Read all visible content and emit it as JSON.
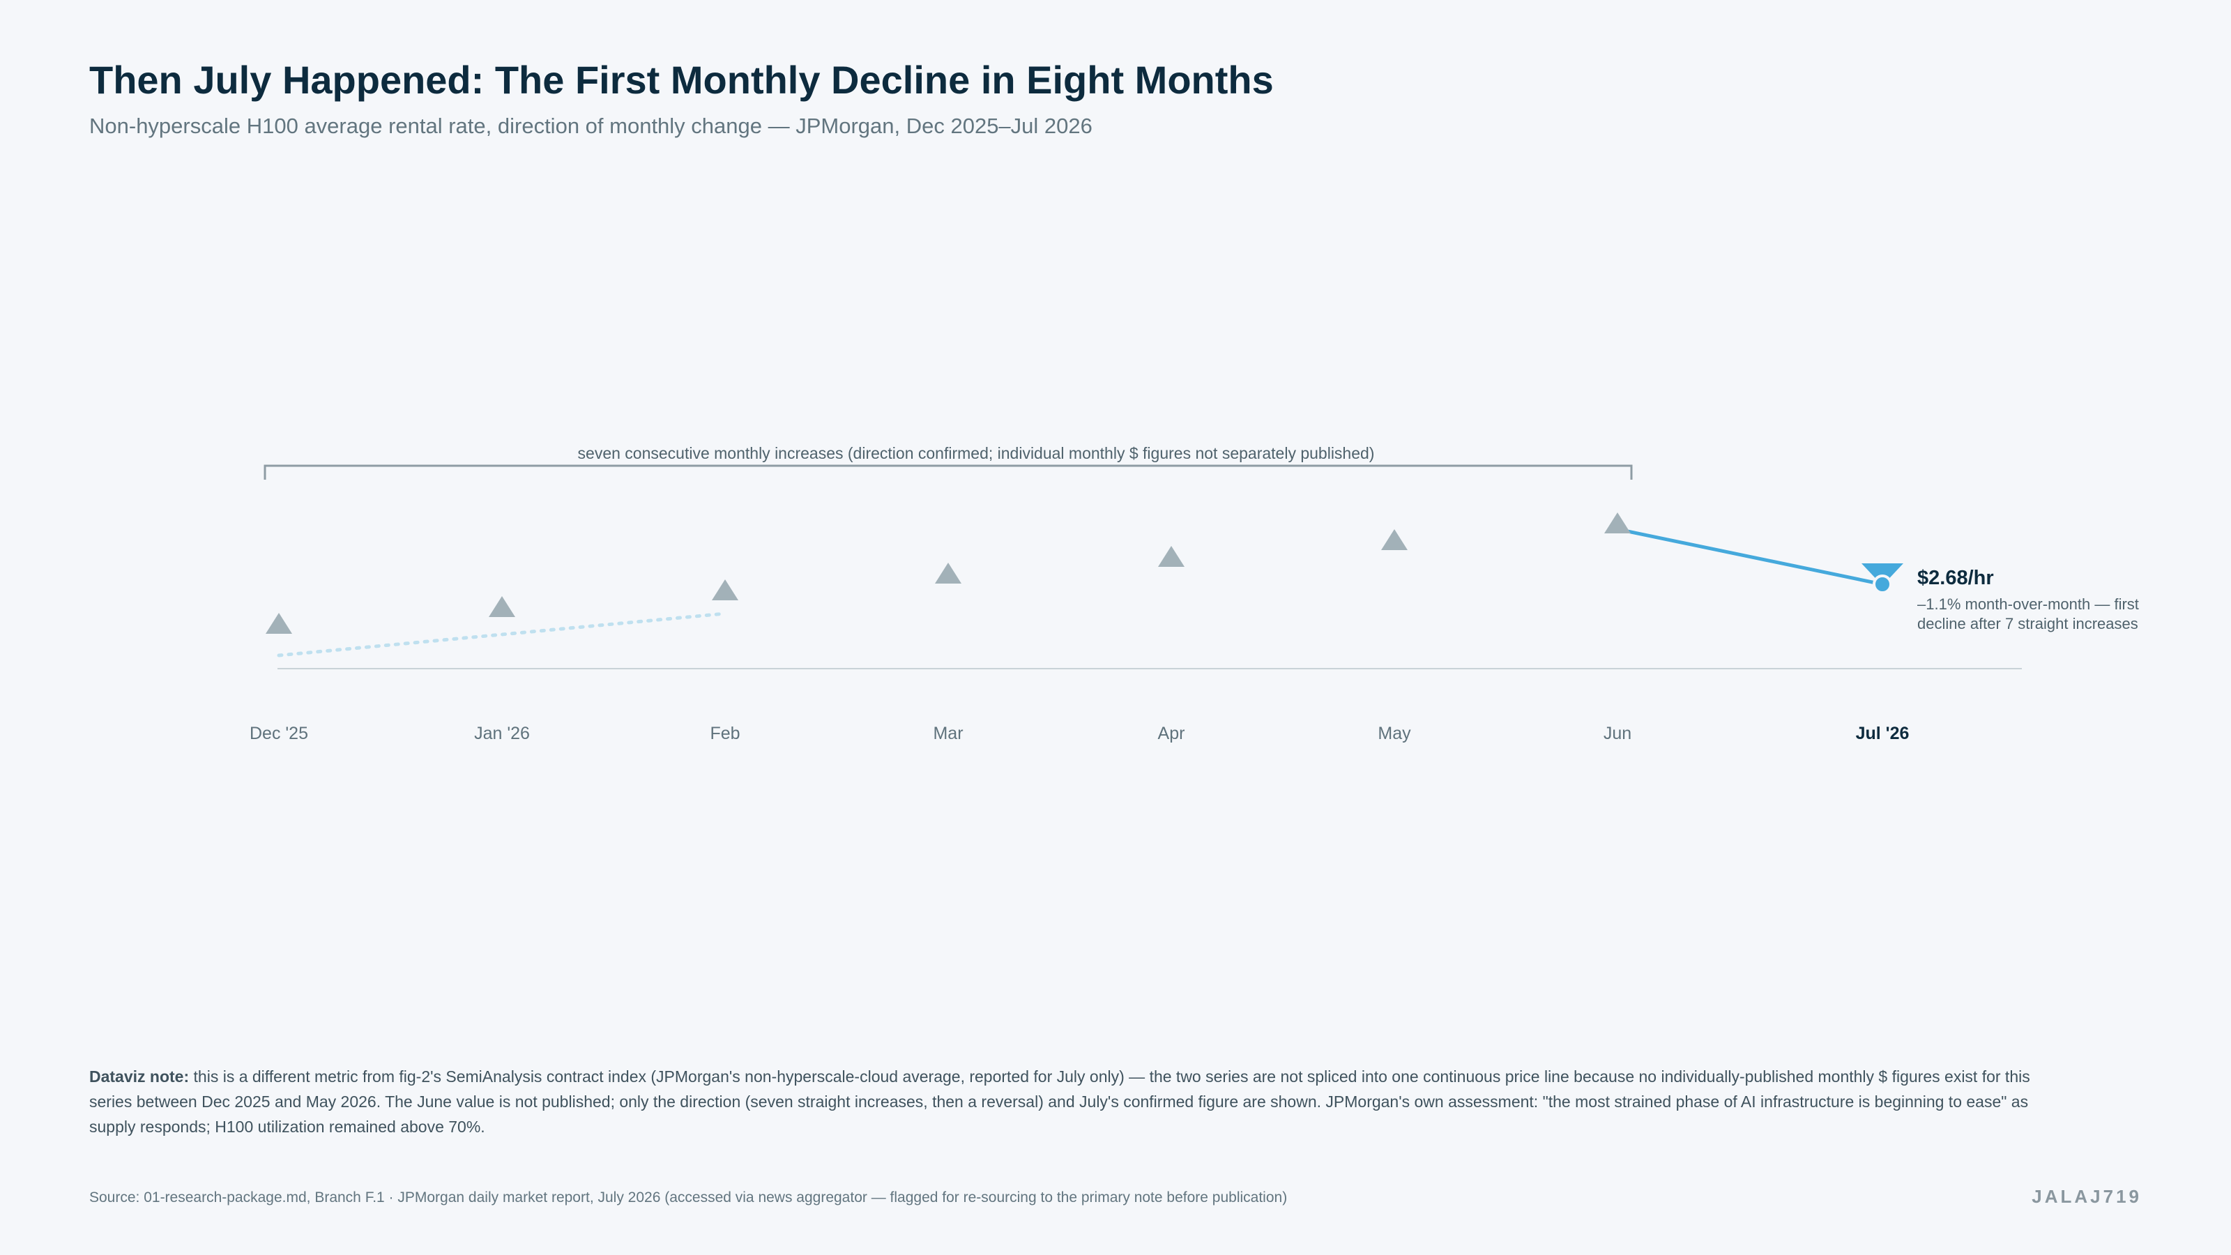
{
  "title": "Then July Happened: The First Monthly Decline in Eight Months",
  "subtitle": "Non-hyperscale H100 average rental rate, direction of monthly change — JPMorgan, Dec 2025–Jul 2026",
  "chart_data": {
    "type": "line",
    "categories": [
      "Dec '25",
      "Jan '26",
      "Feb",
      "Mar",
      "Apr",
      "May",
      "Jun",
      "Jul '26"
    ],
    "series": [
      {
        "direction": [
          "up",
          "up",
          "up",
          "up",
          "up",
          "up",
          "up",
          "down"
        ],
        "values": [
          null,
          null,
          null,
          null,
          null,
          null,
          null,
          2.68
        ]
      }
    ],
    "bracket_annotation": "seven consecutive monthly increases (direction confirmed; individual monthly $ figures not separately published)",
    "callout": {
      "value_label": "$2.68/hr",
      "line1": "–1.1% month-over-month — first",
      "line2": "decline after 7 straight increases"
    },
    "colors": {
      "up_marker": "#a2b1b8",
      "highlight": "#45a9dc",
      "trend_dotted": "#bfe0ef",
      "axis": "#c9d2d7"
    },
    "grid": false,
    "legend": "none"
  },
  "note": {
    "label": "Dataviz note:",
    "text": "this is a different metric from fig-2's SemiAnalysis contract index (JPMorgan's non-hyperscale-cloud average, reported for July only) — the two series are not spliced into one continuous price line because no individually-published monthly $ figures exist for this series between Dec 2025 and May 2026. The June value is not published; only the direction (seven straight increases, then a reversal) and July's confirmed figure are shown. JPMorgan's own assessment: \"the most strained phase of AI infrastructure is beginning to ease\" as supply responds; H100 utilization remained above 70%."
  },
  "source": "Source: 01-research-package.md, Branch F.1 · JPMorgan daily market report, July 2026 (accessed via news aggregator — flagged for re-sourcing to the primary note before publication)",
  "brand": "JALAJ719"
}
